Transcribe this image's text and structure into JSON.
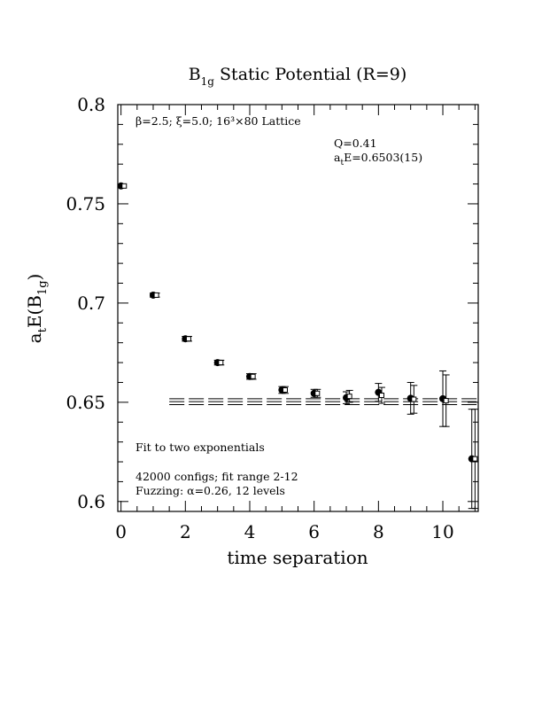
{
  "chart_data": {
    "type": "scatter",
    "title": {
      "base": "B",
      "sub": "1g",
      "rest": " Static Potential (R=9)"
    },
    "xlabel": "time separation",
    "ylabel": {
      "a": "a",
      "a_sub": "t",
      "mid": "E(B",
      "sub": "1g",
      "end": ")"
    },
    "xlim": [
      -0.1,
      11.1
    ],
    "ylim": [
      0.595,
      0.8
    ],
    "x_ticks": [
      0,
      2,
      4,
      6,
      8,
      10
    ],
    "x_tick_labels": [
      "0",
      "2",
      "4",
      "6",
      "8",
      "10"
    ],
    "y_ticks": [
      0.6,
      0.65,
      0.7,
      0.75,
      0.8
    ],
    "y_tick_labels": [
      "0.6",
      "0.65",
      "0.7",
      "0.75",
      "0.8"
    ],
    "annotations": {
      "lattice": "β=2.5; ξ=5.0; 16³×80 Lattice",
      "q": "Q=0.41",
      "energy": "aₜE=0.6503(15)",
      "energy_a": "a",
      "energy_sub": "t",
      "energy_rest": "E=0.6503(15)",
      "fit": "Fit to two exponentials",
      "configs": "42000 configs; fit range 2-12",
      "fuzzing": "Fuzzing: α=0.26, 12 levels"
    },
    "fit": {
      "x_range": [
        1.5,
        11.1
      ],
      "value": 0.6503,
      "error": 0.0015
    },
    "series": [
      {
        "marker": "filled-circle",
        "points": [
          {
            "x": 0,
            "y": 0.759,
            "err": 0.0008
          },
          {
            "x": 1,
            "y": 0.704,
            "err": 0.001
          },
          {
            "x": 2,
            "y": 0.682,
            "err": 0.0012
          },
          {
            "x": 3,
            "y": 0.67,
            "err": 0.0012
          },
          {
            "x": 4,
            "y": 0.663,
            "err": 0.0014
          },
          {
            "x": 5,
            "y": 0.6562,
            "err": 0.0017
          },
          {
            "x": 6,
            "y": 0.6545,
            "err": 0.002
          },
          {
            "x": 7,
            "y": 0.6523,
            "err": 0.003
          },
          {
            "x": 8,
            "y": 0.655,
            "err": 0.0045
          },
          {
            "x": 9,
            "y": 0.652,
            "err": 0.008
          },
          {
            "x": 10,
            "y": 0.6518,
            "err": 0.014
          },
          {
            "x": 10.9,
            "y": 0.6215,
            "err": 0.025
          }
        ]
      },
      {
        "marker": "open-square",
        "points": [
          {
            "x": 0.1,
            "y": 0.759,
            "err": 0.0008
          },
          {
            "x": 1.1,
            "y": 0.704,
            "err": 0.001
          },
          {
            "x": 2.1,
            "y": 0.682,
            "err": 0.0012
          },
          {
            "x": 3.1,
            "y": 0.67,
            "err": 0.0012
          },
          {
            "x": 4.1,
            "y": 0.663,
            "err": 0.0014
          },
          {
            "x": 5.1,
            "y": 0.6562,
            "err": 0.0017
          },
          {
            "x": 6.1,
            "y": 0.6545,
            "err": 0.002
          },
          {
            "x": 7.1,
            "y": 0.653,
            "err": 0.003
          },
          {
            "x": 8.1,
            "y": 0.6535,
            "err": 0.004
          },
          {
            "x": 9.1,
            "y": 0.6515,
            "err": 0.007
          },
          {
            "x": 10.1,
            "y": 0.6508,
            "err": 0.013
          },
          {
            "x": 11.0,
            "y": 0.6215,
            "err": 0.025
          }
        ]
      }
    ]
  }
}
